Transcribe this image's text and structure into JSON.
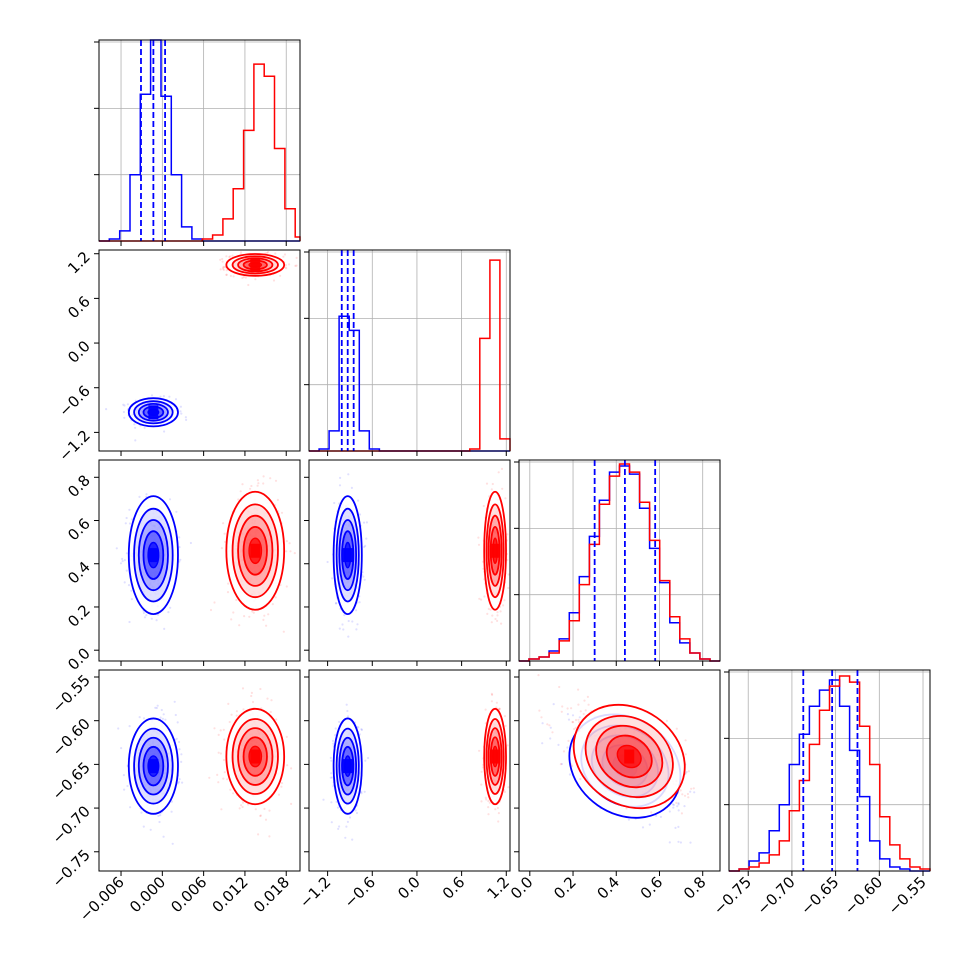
{
  "chart_data": {
    "type": "corner",
    "colors": {
      "blue": "#0000ff",
      "red": "#ff0000",
      "grid": "#b0b0b0"
    },
    "parameters": [
      {
        "range": [
          -0.0092,
          0.02
        ],
        "ticks": [
          -0.006,
          0.0,
          0.006,
          0.012,
          0.018
        ],
        "tick_labels": [
          "−0.006",
          "0.000",
          "0.006",
          "0.012",
          "0.018"
        ]
      },
      {
        "range": [
          -1.45,
          1.25
        ],
        "ticks": [
          -1.2,
          -0.6,
          0.0,
          0.6,
          1.2
        ],
        "tick_labels": [
          "−1.2",
          "−0.6",
          "0.0",
          "0.6",
          "1.2"
        ]
      },
      {
        "range": [
          -0.05,
          0.88
        ],
        "ticks": [
          0.0,
          0.2,
          0.4,
          0.6,
          0.8
        ],
        "tick_labels": [
          "0.0",
          "0.2",
          "0.4",
          "0.6",
          "0.8"
        ]
      },
      {
        "range": [
          -0.772,
          -0.542
        ],
        "ticks": [
          -0.75,
          -0.7,
          -0.65,
          -0.6,
          -0.55
        ],
        "tick_labels": [
          "−0.75",
          "−0.70",
          "−0.65",
          "−0.60",
          "−0.55"
        ]
      }
    ],
    "series": [
      {
        "color": "blue",
        "means": [
          -0.0013,
          -0.93,
          0.44,
          -0.652
        ],
        "sds": [
          0.0017,
          0.09,
          0.13,
          0.026
        ],
        "corr_23": -0.55
      },
      {
        "color": "red",
        "means": [
          0.0135,
          1.05,
          0.46,
          -0.641
        ],
        "sds": [
          0.002,
          0.07,
          0.13,
          0.026
        ],
        "corr_23": -0.55
      }
    ],
    "histograms": [
      {
        "param": 0,
        "bins": [
          -0.0092,
          -0.0077,
          -0.0062,
          -0.0047,
          -0.0032,
          -0.0017,
          -0.0002,
          0.0013,
          0.0028,
          0.0043,
          0.0058,
          0.0073,
          0.0088,
          0.0103,
          0.0118,
          0.0133,
          0.0148,
          0.0163,
          0.0178,
          0.0193,
          0.02
        ],
        "blue": [
          0,
          0.01,
          0.05,
          0.33,
          0.73,
          1.0,
          0.72,
          0.33,
          0.07,
          0.01,
          0,
          0,
          0,
          0,
          0,
          0,
          0,
          0,
          0,
          0
        ],
        "red": [
          0,
          0,
          0,
          0,
          0,
          0,
          0,
          0,
          0,
          0,
          0.01,
          0.03,
          0.11,
          0.26,
          0.55,
          0.88,
          0.82,
          0.46,
          0.16,
          0.02
        ]
      },
      {
        "param": 1,
        "bins": [
          -1.45,
          -1.315,
          -1.18,
          -1.045,
          -0.91,
          -0.775,
          -0.64,
          -0.505,
          -0.37,
          -0.235,
          -0.1,
          0.035,
          0.17,
          0.305,
          0.44,
          0.575,
          0.71,
          0.845,
          0.98,
          1.115,
          1.25
        ],
        "blue": [
          0,
          0.01,
          0.1,
          0.67,
          0.6,
          0.1,
          0.01,
          0,
          0,
          0,
          0,
          0,
          0,
          0,
          0,
          0,
          0,
          0,
          0,
          0
        ],
        "red": [
          0,
          0,
          0,
          0,
          0,
          0,
          0,
          0,
          0,
          0,
          0,
          0,
          0,
          0,
          0,
          0,
          0.01,
          0.56,
          0.95,
          0.06
        ]
      },
      {
        "param": 2,
        "bins": [
          -0.05,
          -0.0035,
          0.043,
          0.0895,
          0.136,
          0.1825,
          0.229,
          0.2755,
          0.322,
          0.3685,
          0.415,
          0.4615,
          0.508,
          0.5545,
          0.601,
          0.6475,
          0.694,
          0.7405,
          0.787,
          0.8335,
          0.88
        ],
        "blue": [
          0,
          0.01,
          0.02,
          0.05,
          0.11,
          0.24,
          0.42,
          0.62,
          0.8,
          0.94,
          0.97,
          0.93,
          0.76,
          0.56,
          0.39,
          0.19,
          0.09,
          0.04,
          0.01,
          0
        ],
        "red": [
          0,
          0.01,
          0.02,
          0.04,
          0.1,
          0.2,
          0.38,
          0.58,
          0.78,
          0.92,
          0.98,
          0.94,
          0.79,
          0.6,
          0.4,
          0.22,
          0.11,
          0.04,
          0.01,
          0
        ]
      },
      {
        "param": 3,
        "bins": [
          -0.772,
          -0.7605,
          -0.749,
          -0.7375,
          -0.726,
          -0.7145,
          -0.703,
          -0.6915,
          -0.68,
          -0.6685,
          -0.657,
          -0.6455,
          -0.634,
          -0.6225,
          -0.611,
          -0.5995,
          -0.588,
          -0.5765,
          -0.565,
          -0.5535,
          -0.542
        ],
        "blue": [
          0,
          0.01,
          0.05,
          0.09,
          0.2,
          0.33,
          0.53,
          0.68,
          0.82,
          0.9,
          0.95,
          0.82,
          0.6,
          0.37,
          0.15,
          0.06,
          0.02,
          0.01,
          0,
          0
        ],
        "red": [
          0,
          0.01,
          0.02,
          0.04,
          0.08,
          0.15,
          0.3,
          0.45,
          0.63,
          0.8,
          0.92,
          0.97,
          0.94,
          0.72,
          0.53,
          0.27,
          0.13,
          0.06,
          0.02,
          0.01
        ]
      }
    ],
    "quantile_lines": [
      {
        "param": 0,
        "values": [
          -0.0031,
          -0.0013,
          0.0004
        ]
      },
      {
        "param": 1,
        "values": [
          -1.01,
          -0.93,
          -0.85
        ]
      },
      {
        "param": 2,
        "values": [
          0.3,
          0.44,
          0.58
        ]
      },
      {
        "param": 3,
        "values": [
          -0.687,
          -0.654,
          -0.625
        ]
      }
    ],
    "grid": true
  }
}
